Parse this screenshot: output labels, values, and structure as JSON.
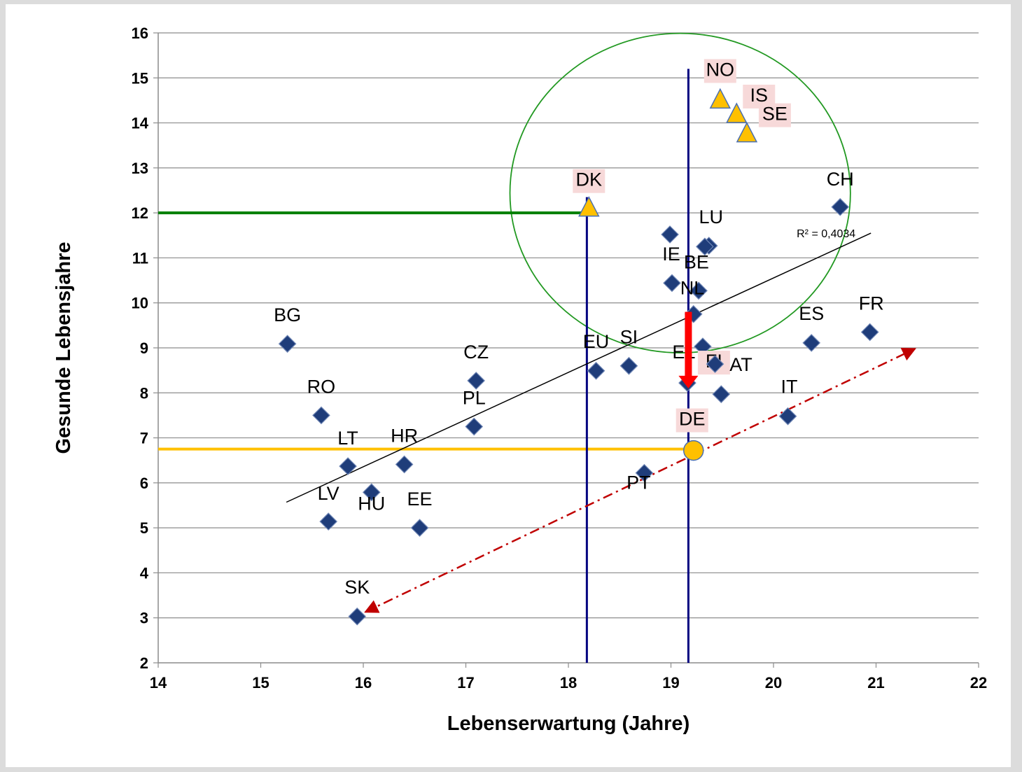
{
  "chart_data": {
    "type": "scatter",
    "title": "",
    "xlabel": "Lebenserwartung (Jahre)",
    "ylabel": "Gesunde Lebensjahre",
    "xlim": [
      14,
      22
    ],
    "ylim": [
      2,
      16
    ],
    "x_ticks": [
      14,
      15,
      16,
      17,
      18,
      19,
      20,
      21,
      22
    ],
    "y_ticks": [
      2,
      3,
      4,
      5,
      6,
      7,
      8,
      9,
      10,
      11,
      12,
      13,
      14,
      15,
      16
    ],
    "grid": "horizontal",
    "trendline": {
      "type": "linear",
      "x_range": [
        15.25,
        20.95
      ],
      "y_range": [
        5.57,
        11.55
      ],
      "label": "R² = 0,4034"
    },
    "series": [
      {
        "marker": "diamond",
        "color": "#1f3d7a",
        "points": [
          {
            "label": "BG",
            "x": 15.26,
            "y": 9.09
          },
          {
            "label": "RO",
            "x": 15.59,
            "y": 7.5
          },
          {
            "label": "LT",
            "x": 15.85,
            "y": 6.37
          },
          {
            "label": "HU",
            "x": 16.08,
            "y": 5.79
          },
          {
            "label": "LV",
            "x": 15.66,
            "y": 5.14
          },
          {
            "label": "HR",
            "x": 16.4,
            "y": 6.41
          },
          {
            "label": "EE",
            "x": 16.55,
            "y": 5.0
          },
          {
            "label": "SK",
            "x": 15.94,
            "y": 3.03
          },
          {
            "label": "CZ",
            "x": 17.1,
            "y": 8.27
          },
          {
            "label": "PL",
            "x": 17.08,
            "y": 7.25
          },
          {
            "label": "EU",
            "x": 18.27,
            "y": 8.49
          },
          {
            "label": "SI",
            "x": 18.59,
            "y": 8.6
          },
          {
            "label": "PT",
            "x": 18.74,
            "y": 6.22
          },
          {
            "label": "IE",
            "x": 18.99,
            "y": 11.52
          },
          {
            "label": "",
            "x": 19.01,
            "y": 10.44
          },
          {
            "label": "LU",
            "x": 19.37,
            "y": 11.27
          },
          {
            "label": "BE",
            "x": 19.33,
            "y": 11.25
          },
          {
            "label": "NL",
            "x": 19.27,
            "y": 10.27
          },
          {
            "label": "",
            "x": 19.22,
            "y": 9.75
          },
          {
            "label": "FI",
            "x": 19.31,
            "y": 9.03
          },
          {
            "label": "EL",
            "x": 19.16,
            "y": 8.22
          },
          {
            "label": "AT",
            "x": 19.43,
            "y": 8.64
          },
          {
            "label": "",
            "x": 19.49,
            "y": 7.97
          },
          {
            "label": "IT",
            "x": 20.14,
            "y": 7.48
          },
          {
            "label": "ES",
            "x": 20.37,
            "y": 9.11
          },
          {
            "label": "FR",
            "x": 20.94,
            "y": 9.35
          },
          {
            "label": "CH",
            "x": 20.65,
            "y": 12.13
          }
        ]
      },
      {
        "marker": "triangle",
        "color": "#ffc000",
        "points": [
          {
            "label": "DK",
            "x": 18.2,
            "y": 12.1
          },
          {
            "label": "NO",
            "x": 19.48,
            "y": 14.5
          },
          {
            "label": "IS",
            "x": 19.64,
            "y": 14.18
          },
          {
            "label": "SE",
            "x": 19.74,
            "y": 13.75
          }
        ]
      },
      {
        "marker": "circle",
        "color": "#ffc000",
        "points": [
          {
            "label": "DE",
            "x": 19.22,
            "y": 6.72
          }
        ]
      }
    ],
    "annotations": {
      "vertical_lines": [
        {
          "x": 18.18,
          "y_top": 12.35,
          "color": "#000080"
        },
        {
          "x": 19.17,
          "y_top": 15.2,
          "color": "#000080"
        }
      ],
      "horizontal_lines": [
        {
          "y": 12.0,
          "x_end": 18.18,
          "color": "#008000"
        },
        {
          "y": 6.75,
          "x_end": 19.17,
          "color": "#ffc000"
        }
      ],
      "ellipse": {
        "cx": 19.09,
        "cy": 12.44,
        "rx": 1.66,
        "ry": 3.55,
        "color": "#229922"
      },
      "down_arrow": {
        "x": 19.17,
        "from_y": 9.8,
        "to_y": 8.1,
        "color": "#ff0000"
      },
      "dashed_arrow": {
        "from": [
          16.02,
          3.13
        ],
        "to": [
          21.38,
          8.98
        ],
        "color": "#c00000"
      }
    }
  }
}
